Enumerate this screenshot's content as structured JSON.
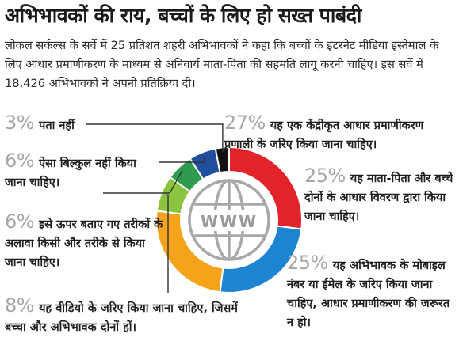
{
  "headline": "अभिभावकों की राय, बच्चों के लिए हो सख्त पाबंदी",
  "intro": "लोकल सर्कल्स के सर्वे में 25 प्रतिशत शहरी अभिभावकों ने कहा कि बच्चों के इंटरनेट मीडिया इस्तेमाल के लिए आधार प्रमाणीकरण के माध्यम से अनिवार्य माता-पिता की सहमति लागू करनी चाहिए। इस सर्वे में 18,426 अभिभावकों ने अपनी प्रतिक्रिया दी।",
  "center_text": "WWW",
  "chart_data": {
    "type": "pie",
    "donut": true,
    "slices": [
      {
        "pct_label": "27%",
        "value": 27,
        "label": "यह एक केंद्रीकृत आधार प्रमाणीकरण प्रणाली के जरिए किया जाना चाहिए।",
        "color": "#e2232a"
      },
      {
        "pct_label": "25%",
        "value": 25,
        "label": "यह माता-पिता और बच्चे दोनों के आधार विवरण द्वारा किया जाना चाहिए।",
        "color": "#1d84d1"
      },
      {
        "pct_label": "25%",
        "value": 25,
        "label": "यह अभिभावक के मोबाइल नंबर या ईमेल के जरिए किया जाना चाहिए, आधार प्रमाणीकरण की जरूरत न हो।",
        "color": "#f5a31a"
      },
      {
        "pct_label": "8%",
        "value": 8,
        "label": "यह वीडियो के जरिए किया जाना चाहिए, जिसमें बच्चा और अभिभावक दोनों हों।",
        "color": "#8bc53f"
      },
      {
        "pct_label": "6%",
        "value": 6,
        "label": "इसे ऊपर बताए गए तरीकों के अलावा किसी और तरीके से किया जाना चाहिए।",
        "color": "#2e9c4c"
      },
      {
        "pct_label": "6%",
        "value": 6,
        "label": "ऐसा बिल्कुल नहीं किया जाना चाहिए।",
        "color": "#1f4f9e"
      },
      {
        "pct_label": "3%",
        "value": 3,
        "label": "पता नहीं",
        "color": "#111111"
      }
    ]
  }
}
